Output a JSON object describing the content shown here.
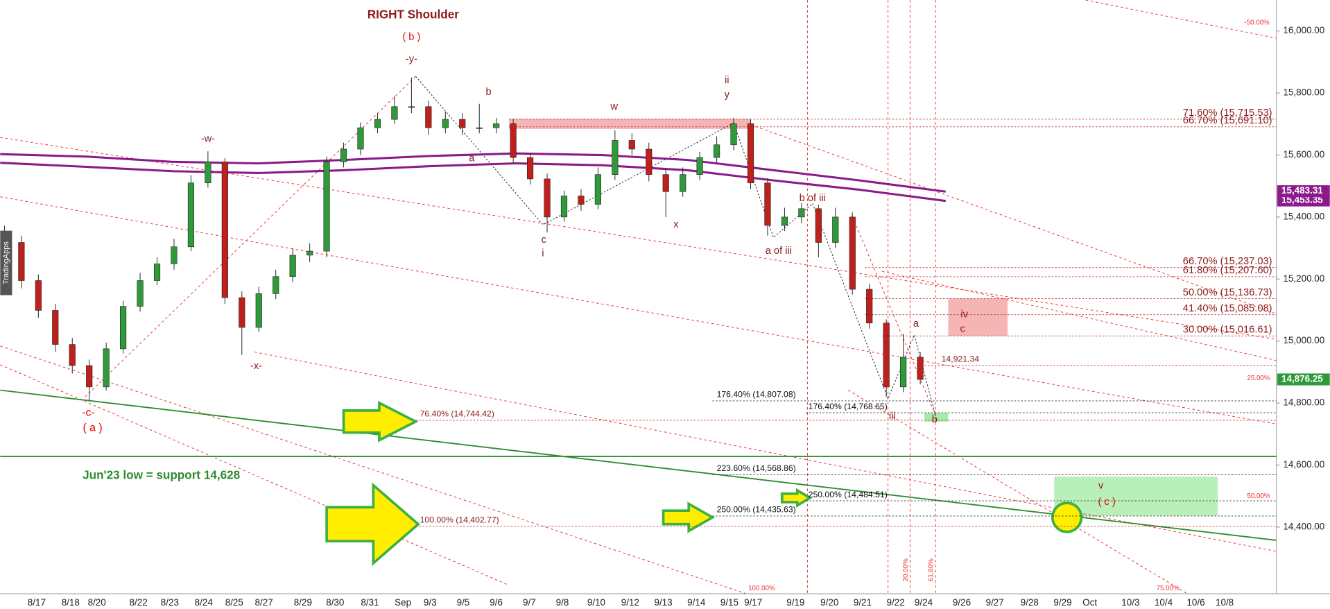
{
  "chart_data": {
    "type": "candlestick",
    "title": "RIGHT Shoulder",
    "ylim": [
      14185,
      16100
    ],
    "yticks": [
      {
        "value": 14400,
        "label": "14,400.00"
      },
      {
        "value": 14600,
        "label": "14,600.00"
      },
      {
        "value": 14800,
        "label": "14,800.00"
      },
      {
        "value": 15000,
        "label": "15,000.00"
      },
      {
        "value": 15200,
        "label": "15,200.00"
      },
      {
        "value": 15400,
        "label": "15,400.00"
      },
      {
        "value": 15600,
        "label": "15,600.00"
      },
      {
        "value": 15800,
        "label": "15,800.00"
      },
      {
        "value": 16000,
        "label": "16,000.00"
      }
    ],
    "x_labels": [
      "8/17",
      "8/18",
      "8/20",
      "8/22",
      "8/23",
      "8/24",
      "8/25",
      "8/27",
      "8/29",
      "8/30",
      "8/31",
      "Sep",
      "9/3",
      "9/5",
      "9/6",
      "9/7",
      "9/8",
      "9/10",
      "9/12",
      "9/13",
      "9/14",
      "9/15",
      "9/17",
      "9/19",
      "9/20",
      "9/21",
      "9/22",
      "9/24",
      "9/26",
      "9/27",
      "9/28",
      "9/29",
      "Oct",
      "10/3",
      "10/4",
      "10/6",
      "10/8"
    ],
    "up_color": "#2e9a3a",
    "down_color": "#c0201c",
    "open": [
      15350,
      15318,
      15195,
      15099,
      14989,
      14921,
      14852,
      14975,
      15112,
      15195,
      15249,
      15304,
      15510,
      15578,
      15140,
      15044,
      15153,
      15208,
      15277,
      15290,
      15578,
      15619,
      15688,
      15715,
      15756,
      15756,
      15688,
      15715,
      15688,
      15688,
      15701,
      15592,
      15523,
      15400,
      15468,
      15441,
      15537,
      15647,
      15619,
      15537,
      15482,
      15537,
      15592,
      15633,
      15701,
      15510,
      15373,
      15400,
      15427,
      15318,
      15400,
      15167,
      15058,
      14852,
      14948
    ],
    "high": [
      15372,
      15340,
      15215,
      15120,
      15010,
      14940,
      14995,
      15130,
      15220,
      15270,
      15330,
      15535,
      15612,
      15590,
      15160,
      15175,
      15230,
      15300,
      15315,
      15595,
      15640,
      15705,
      15735,
      15790,
      15850,
      15775,
      15740,
      15735,
      15765,
      15720,
      15715,
      15605,
      15540,
      15485,
      15490,
      15560,
      15680,
      15670,
      15640,
      15555,
      15560,
      15610,
      15660,
      15720,
      15715,
      15525,
      15430,
      15445,
      15440,
      15430,
      15415,
      15185,
      15070,
      15024,
      14965
    ],
    "low": [
      15295,
      15170,
      15075,
      14965,
      14895,
      14808,
      14840,
      14960,
      15095,
      15180,
      15230,
      15290,
      15495,
      15120,
      14955,
      15030,
      15135,
      15190,
      15255,
      15270,
      15560,
      15600,
      15670,
      15700,
      15735,
      15665,
      15670,
      15665,
      15670,
      15670,
      15575,
      15505,
      15350,
      15385,
      15420,
      15425,
      15520,
      15600,
      15515,
      15400,
      15465,
      15520,
      15575,
      15615,
      15490,
      15340,
      15355,
      15380,
      15270,
      15300,
      15150,
      15040,
      14820,
      14835,
      14860
    ],
    "close": [
      15318,
      15195,
      15099,
      14989,
      14921,
      14852,
      14975,
      15112,
      15195,
      15249,
      15304,
      15510,
      15578,
      15140,
      15044,
      15153,
      15208,
      15277,
      15290,
      15578,
      15619,
      15688,
      15715,
      15756,
      15756,
      15688,
      15715,
      15688,
      15688,
      15701,
      15592,
      15523,
      15400,
      15468,
      15441,
      15537,
      15647,
      15619,
      15537,
      15482,
      15537,
      15592,
      15633,
      15701,
      15510,
      15373,
      15400,
      15427,
      15318,
      15400,
      15167,
      15058,
      14852,
      14948,
      14876
    ],
    "moving_averages": [
      {
        "color": "#8b1a8b",
        "values": [
          15603,
          15595,
          15578,
          15573,
          15584,
          15597,
          15605,
          15600,
          15584,
          15551,
          15518,
          15482
        ]
      },
      {
        "color": "#8b1a8b",
        "values": [
          15575,
          15562,
          15548,
          15542,
          15551,
          15564,
          15573,
          15567,
          15551,
          15518,
          15488,
          15452
        ]
      }
    ],
    "price_tags": [
      {
        "value": 15453.35,
        "label": "15,453.35",
        "color": "#8b1a8b"
      },
      {
        "value": 15483.31,
        "label": "15,483.31",
        "color": "#8b1a8b"
      },
      {
        "value": 14876.25,
        "label": "14,876.25",
        "color": "#2e9a3a"
      }
    ],
    "levels": [
      {
        "value": 15715.53,
        "label": "71.60% (15,715.53)"
      },
      {
        "value": 15691.1,
        "label": "66.70% (15,691.10)"
      },
      {
        "value": 15237.03,
        "label": "66.70% (15,237.03)"
      },
      {
        "value": 15207.6,
        "label": "61.80% (15,207.60)"
      },
      {
        "value": 15136.73,
        "label": "50.00% (15,136.73)"
      },
      {
        "value": 15085.08,
        "label": "41.40% (15,085.08)"
      },
      {
        "value": 15016.61,
        "label": "30.00% (15,016.61)"
      },
      {
        "value": 14921.34,
        "label": "14,921.34"
      },
      {
        "value": 14807.08,
        "label": "176.40% (14,807.08)"
      },
      {
        "value": 14768.65,
        "label": "176.40% (14,768.65)"
      },
      {
        "value": 14744.42,
        "label": "76.40% (14,744.42)"
      },
      {
        "value": 14568.86,
        "label": "223.60% (14,568.86)"
      },
      {
        "value": 14484.51,
        "label": "250.00% (14,484.51)"
      },
      {
        "value": 14435.63,
        "label": "250.00% (14,435.63)"
      },
      {
        "value": 14402.77,
        "label": "100.00% (14,402.77)"
      }
    ],
    "support": {
      "value": 14628,
      "label": "Jun'23 low =  support 14,628",
      "color": "#2e8b2e"
    },
    "annotations": [
      "( b )",
      "-y-",
      "b",
      "w",
      "ii",
      "y",
      "-w-",
      "a",
      "c",
      "i",
      "x",
      "b of iii",
      "a of iii",
      "-x-",
      "-c-",
      "( a )",
      "a",
      "iv",
      "c",
      "b",
      "v",
      "( c )",
      "iii",
      "25.00%",
      "-50.00%",
      "50.00%",
      "100.00%",
      "75.00%",
      "30.00%",
      "61.80%",
      "TradingApps"
    ]
  }
}
